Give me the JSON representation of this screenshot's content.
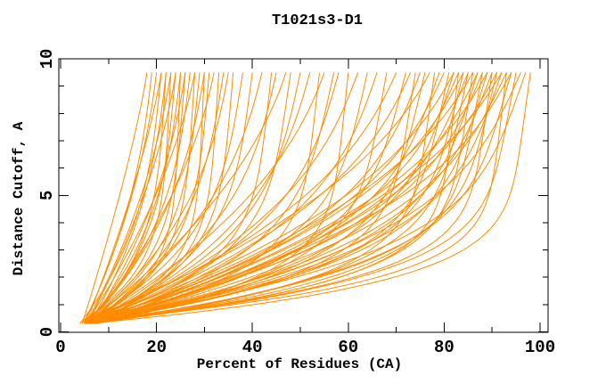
{
  "chart_data": {
    "type": "line",
    "title": "T1021s3-D1",
    "xlabel": "Percent of Residues (CA)",
    "ylabel": "Distance Cutoff, A",
    "xlim": [
      0,
      101.7
    ],
    "ylim": [
      0,
      10
    ],
    "x_ticks_major": [
      0,
      20,
      40,
      60,
      80,
      100
    ],
    "x_ticks_minor": [
      10,
      30,
      50,
      70,
      90
    ],
    "y_ticks_major": [
      0,
      5,
      10
    ],
    "y_ticks_major_labels": [
      "0",
      "5",
      "10"
    ],
    "y_ticks_minor": [
      1,
      2,
      3,
      4,
      6,
      7,
      8,
      9
    ],
    "grid": false,
    "legend": false,
    "background_color": "#ffffff",
    "frame_color": "#000000",
    "line_color": "#ff8c00",
    "y_max_data": 9.5,
    "n_curves": 86,
    "curve_model": "Each curve (one per predicted model) gives percent of CA residues x under distance cutoff y. Approximated as x(y) = s + (e - s) * ((1-w)*t + w*(1-(1-t)^b)) with t = (y - ys) / (9.5 - ys); params per curve: [s, e, b, w, ys]; curves start near x=4-9 at y~0.3-0.45 and end at x=e at cutoff y=9.5",
    "curves": [
      [
        4.5,
        18,
        1.4,
        0.55,
        0.3
      ],
      [
        5,
        20,
        2,
        0.6,
        0.35
      ],
      [
        4,
        21,
        3,
        0.7,
        0.3
      ],
      [
        5.5,
        21,
        1.6,
        0.5,
        0.4
      ],
      [
        5,
        22,
        4,
        0.8,
        0.35
      ],
      [
        6,
        22,
        2.5,
        0.65,
        0.3
      ],
      [
        4.5,
        23,
        5,
        0.85,
        0.4
      ],
      [
        5.5,
        23,
        2,
        0.55,
        0.35
      ],
      [
        5,
        24,
        3.5,
        0.75,
        0.3
      ],
      [
        6,
        24,
        1.8,
        0.6,
        0.45
      ],
      [
        4.5,
        25,
        6,
        0.9,
        0.35
      ],
      [
        5.5,
        25,
        2.8,
        0.7,
        0.3
      ],
      [
        5,
        26,
        4.5,
        0.8,
        0.4
      ],
      [
        6.5,
        26,
        2.2,
        0.6,
        0.35
      ],
      [
        5,
        27,
        3,
        0.72,
        0.3
      ],
      [
        6,
        28,
        5,
        0.85,
        0.4
      ],
      [
        5.5,
        28,
        1.9,
        0.55,
        0.35
      ],
      [
        5,
        29,
        3.8,
        0.78,
        0.3
      ],
      [
        6.5,
        30,
        2.5,
        0.65,
        0.45
      ],
      [
        5.5,
        31,
        4.2,
        0.82,
        0.35
      ],
      [
        6,
        32,
        2,
        0.6,
        0.3
      ],
      [
        5,
        33,
        5.5,
        0.88,
        0.4
      ],
      [
        6.5,
        34,
        3.2,
        0.7,
        0.35
      ],
      [
        5.5,
        35,
        2.6,
        0.68,
        0.3
      ],
      [
        6,
        36,
        4.8,
        0.85,
        0.4
      ],
      [
        5,
        38,
        3.5,
        0.75,
        0.35
      ],
      [
        4.8,
        19,
        2.3,
        0.62,
        0.32
      ],
      [
        5.2,
        30,
        6,
        0.9,
        0.38
      ],
      [
        5.5,
        40,
        4,
        0.8,
        0.35
      ],
      [
        6,
        42,
        2.5,
        0.65,
        0.3
      ],
      [
        5,
        44,
        5,
        0.85,
        0.4
      ],
      [
        6.5,
        45,
        3,
        0.7,
        0.35
      ],
      [
        5.5,
        47,
        2,
        0.6,
        0.3
      ],
      [
        6,
        48,
        4.5,
        0.82,
        0.45
      ],
      [
        5,
        50,
        3.5,
        0.75,
        0.35
      ],
      [
        7,
        52,
        2.8,
        0.68,
        0.3
      ],
      [
        5.5,
        54,
        5.5,
        0.88,
        0.4
      ],
      [
        6,
        55,
        2.2,
        0.62,
        0.35
      ],
      [
        5,
        57,
        4,
        0.78,
        0.3
      ],
      [
        6.5,
        58,
        3.2,
        0.72,
        0.4
      ],
      [
        5.5,
        60,
        6,
        0.9,
        0.35
      ],
      [
        6,
        62,
        2.6,
        0.66,
        0.3
      ],
      [
        5,
        64,
        4.2,
        0.8,
        0.45
      ],
      [
        7,
        66,
        3,
        0.7,
        0.35
      ],
      [
        5.5,
        68,
        5,
        0.85,
        0.3
      ],
      [
        6,
        70,
        2.4,
        0.64,
        0.4
      ],
      [
        6,
        72,
        4,
        0.8,
        0.35
      ],
      [
        5.5,
        73,
        2.5,
        0.65,
        0.3
      ],
      [
        6.5,
        74,
        5.5,
        0.88,
        0.4
      ],
      [
        5,
        75,
        3,
        0.72,
        0.35
      ],
      [
        7,
        76,
        4.5,
        0.82,
        0.3
      ],
      [
        5.5,
        77,
        2.2,
        0.62,
        0.45
      ],
      [
        6,
        78,
        6,
        0.9,
        0.35
      ],
      [
        5,
        79,
        3.5,
        0.75,
        0.3
      ],
      [
        6.5,
        80,
        2.8,
        0.68,
        0.4
      ],
      [
        5.5,
        81,
        5,
        0.85,
        0.35
      ],
      [
        7,
        82,
        3.8,
        0.78,
        0.3
      ],
      [
        6,
        82,
        2.4,
        0.64,
        0.4
      ],
      [
        5,
        83,
        6.5,
        0.92,
        0.35
      ],
      [
        6.5,
        83,
        3,
        0.7,
        0.3
      ],
      [
        5.5,
        84,
        4.8,
        0.84,
        0.45
      ],
      [
        6,
        84,
        2.6,
        0.66,
        0.35
      ],
      [
        7,
        85,
        5.2,
        0.86,
        0.3
      ],
      [
        5,
        85,
        3.4,
        0.74,
        0.4
      ],
      [
        6.5,
        86,
        2.3,
        0.63,
        0.35
      ],
      [
        5.5,
        86,
        6,
        0.9,
        0.3
      ],
      [
        6,
        87,
        4,
        0.8,
        0.4
      ],
      [
        7.5,
        87,
        2.9,
        0.69,
        0.35
      ],
      [
        5,
        88,
        5.5,
        0.88,
        0.3
      ],
      [
        6.5,
        88,
        3.2,
        0.73,
        0.45
      ],
      [
        5.5,
        89,
        4.4,
        0.81,
        0.35
      ],
      [
        6,
        89,
        2.5,
        0.65,
        0.3
      ],
      [
        7,
        90,
        6.2,
        0.91,
        0.4
      ],
      [
        5.5,
        90,
        3.6,
        0.76,
        0.35
      ],
      [
        6,
        91,
        2.7,
        0.67,
        0.3
      ],
      [
        8,
        91,
        5,
        0.85,
        0.4
      ],
      [
        5,
        92,
        3.9,
        0.79,
        0.35
      ],
      [
        6.5,
        92,
        2.4,
        0.64,
        0.3
      ],
      [
        5.5,
        93,
        6.8,
        0.93,
        0.4
      ],
      [
        7,
        93,
        3.1,
        0.71,
        0.35
      ],
      [
        6,
        94,
        4.6,
        0.83,
        0.3
      ],
      [
        5.5,
        94,
        2.8,
        0.68,
        0.45
      ],
      [
        6.5,
        95,
        5.8,
        0.89,
        0.35
      ],
      [
        7.5,
        96,
        3.3,
        0.73,
        0.3
      ],
      [
        6,
        97,
        4.1,
        0.8,
        0.4
      ],
      [
        8.5,
        98,
        6.5,
        0.92,
        0.35
      ]
    ]
  }
}
